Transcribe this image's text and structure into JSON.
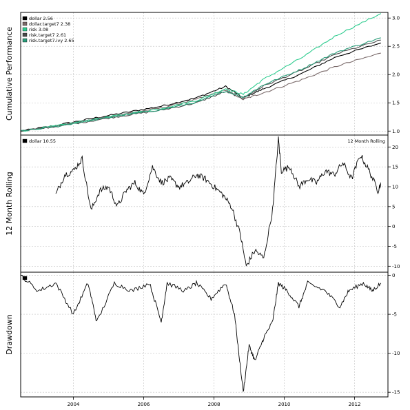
{
  "colors": {
    "dollar": "#000000",
    "dollar_target": "#7a6a6a",
    "risk": "#2ecc8f",
    "risk_target": "#4a4a4a",
    "risk_target_2": "#2a9d7a",
    "grid": "#c0c0c0"
  },
  "chart_data": [
    {
      "type": "line",
      "ylabel": "Cumulative Performance",
      "ylim": [
        0.93,
        3.1
      ],
      "yticks": [
        "1.0",
        "1.5",
        "2.0",
        "2.5",
        "3.0"
      ],
      "grid": true,
      "legend_position": "top-left",
      "x_range": [
        "2002-07",
        "2012-10"
      ],
      "series": [
        {
          "name": "dollar 2.56",
          "color_key": "dollar",
          "x": [
            "2002-07",
            "2003-07",
            "2004-07",
            "2005-07",
            "2006-07",
            "2007-07",
            "2008-05",
            "2008-11",
            "2009-06",
            "2010-07",
            "2011-07",
            "2012-10"
          ],
          "values": [
            1.0,
            1.1,
            1.22,
            1.33,
            1.44,
            1.59,
            1.79,
            1.59,
            1.75,
            2.02,
            2.32,
            2.56
          ]
        },
        {
          "name": "dollar.target7 2.38",
          "color_key": "dollar_target",
          "x": [
            "2002-07",
            "2003-07",
            "2004-07",
            "2005-07",
            "2006-07",
            "2007-07",
            "2008-05",
            "2008-11",
            "2009-06",
            "2010-07",
            "2011-07",
            "2012-10"
          ],
          "values": [
            1.0,
            1.09,
            1.2,
            1.31,
            1.41,
            1.56,
            1.73,
            1.56,
            1.68,
            1.91,
            2.15,
            2.38
          ]
        },
        {
          "name": "risk 3.08",
          "color_key": "risk",
          "x": [
            "2002-07",
            "2003-07",
            "2004-07",
            "2005-07",
            "2006-07",
            "2007-07",
            "2008-05",
            "2008-11",
            "2009-06",
            "2010-07",
            "2011-07",
            "2012-10"
          ],
          "values": [
            1.0,
            1.09,
            1.2,
            1.3,
            1.4,
            1.54,
            1.75,
            1.65,
            1.92,
            2.3,
            2.7,
            3.08
          ]
        },
        {
          "name": "risk.target7 2.61",
          "color_key": "risk_target",
          "x": [
            "2002-07",
            "2003-07",
            "2004-07",
            "2005-07",
            "2006-07",
            "2007-07",
            "2008-05",
            "2008-11",
            "2009-06",
            "2010-07",
            "2011-07",
            "2012-10"
          ],
          "values": [
            1.0,
            1.08,
            1.18,
            1.28,
            1.37,
            1.5,
            1.7,
            1.58,
            1.8,
            2.08,
            2.37,
            2.61
          ]
        },
        {
          "name": "risk.target7.ivy 2.65",
          "color_key": "risk_target_2",
          "x": [
            "2002-07",
            "2003-07",
            "2004-07",
            "2005-07",
            "2006-07",
            "2007-07",
            "2008-05",
            "2008-11",
            "2009-06",
            "2010-07",
            "2011-07",
            "2012-10"
          ],
          "values": [
            1.0,
            1.08,
            1.19,
            1.29,
            1.38,
            1.51,
            1.71,
            1.6,
            1.82,
            2.1,
            2.4,
            2.65
          ]
        }
      ]
    },
    {
      "type": "line",
      "ylabel": "12 Month Rolling",
      "annotation": "12 Month Rolling",
      "ylim": [
        -11.5,
        23
      ],
      "yticks": [
        "-10",
        "-5",
        "0",
        "5",
        "10",
        "15",
        "20"
      ],
      "grid": true,
      "legend_position": "top-left",
      "series": [
        {
          "name": "dollar 10.55",
          "color_key": "dollar",
          "x": [
            "2003-07",
            "2003-10",
            "2004-01",
            "2004-04",
            "2004-07",
            "2004-10",
            "2005-01",
            "2005-04",
            "2005-07",
            "2005-10",
            "2006-01",
            "2006-04",
            "2006-07",
            "2006-10",
            "2007-01",
            "2007-04",
            "2007-07",
            "2007-10",
            "2008-01",
            "2008-04",
            "2008-07",
            "2008-10",
            "2008-12",
            "2009-03",
            "2009-06",
            "2009-09",
            "2009-11",
            "2009-12",
            "2010-03",
            "2010-06",
            "2010-09",
            "2010-12",
            "2011-03",
            "2011-06",
            "2011-09",
            "2011-12",
            "2012-03",
            "2012-06",
            "2012-09",
            "2012-10"
          ],
          "values": [
            8,
            13,
            14,
            17,
            4,
            9,
            10,
            5,
            9,
            11,
            8,
            15,
            11,
            12,
            10,
            11,
            13,
            12,
            10,
            8,
            5,
            -2,
            -10,
            -6,
            -8,
            4,
            22,
            14,
            15,
            10,
            12,
            11,
            14,
            13,
            16,
            12,
            18,
            14,
            9,
            11
          ]
        }
      ]
    },
    {
      "type": "area",
      "ylabel": "Drawdown",
      "ylim": [
        -15.6,
        0.4
      ],
      "yticks": [
        "-15",
        "-10",
        "-5",
        "0"
      ],
      "xticks": [
        "2004",
        "2006",
        "2008",
        "2010",
        "2012"
      ],
      "grid": true,
      "legend_position": "top-left",
      "series": [
        {
          "name": "dollar",
          "color_key": "dollar",
          "x": [
            "2002-07",
            "2003-01",
            "2003-07",
            "2004-01",
            "2004-06",
            "2004-09",
            "2005-03",
            "2005-09",
            "2006-03",
            "2006-07",
            "2006-09",
            "2007-03",
            "2007-07",
            "2007-12",
            "2008-05",
            "2008-08",
            "2008-11",
            "2009-01",
            "2009-03",
            "2009-06",
            "2009-09",
            "2009-11",
            "2010-02",
            "2010-06",
            "2010-09",
            "2011-03",
            "2011-08",
            "2011-11",
            "2012-04",
            "2012-07",
            "2012-10"
          ],
          "values": [
            0,
            -2,
            -1,
            -5,
            -1,
            -6,
            -1,
            -2,
            -1,
            -6,
            -1,
            -2,
            -1,
            -3,
            -1,
            -5,
            -15,
            -9,
            -11,
            -8,
            -6,
            -1,
            -2,
            -4,
            -1,
            -2,
            -4,
            -2,
            -1,
            -2,
            -1
          ]
        }
      ]
    }
  ]
}
